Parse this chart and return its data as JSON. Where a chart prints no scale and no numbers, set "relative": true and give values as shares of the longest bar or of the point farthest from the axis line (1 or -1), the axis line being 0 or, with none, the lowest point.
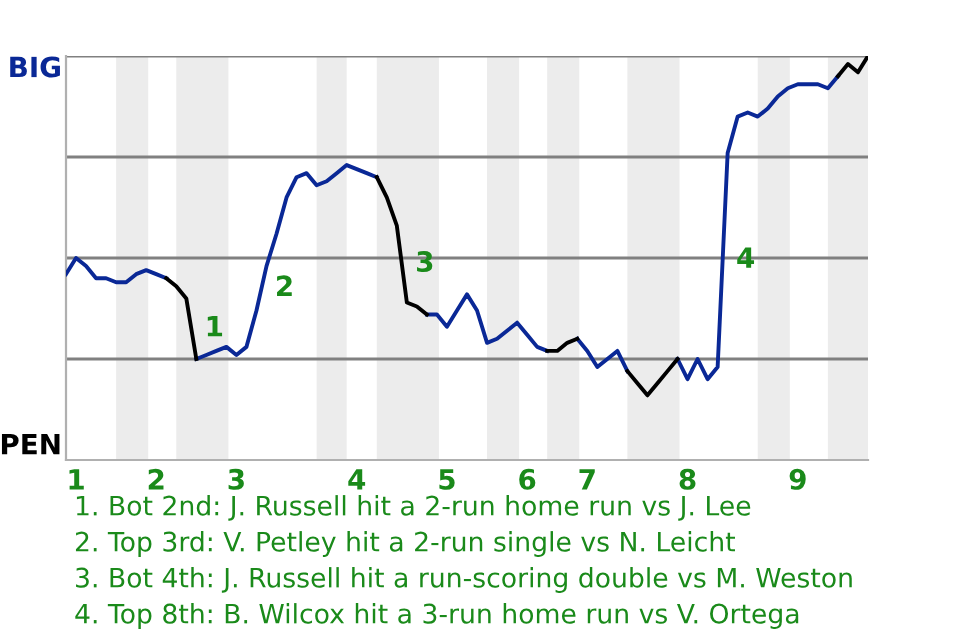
{
  "chart_data": {
    "type": "line",
    "relative": true,
    "categories": [
      null,
      "1",
      null,
      null,
      null,
      null,
      null,
      null,
      null,
      "2",
      null,
      null,
      null,
      null,
      null,
      null,
      null,
      "3",
      null,
      null,
      null,
      null,
      null,
      null,
      null,
      null,
      null,
      null,
      null,
      "4",
      null,
      null,
      null,
      null,
      null,
      null,
      null,
      null,
      "5",
      null,
      null,
      null,
      null,
      null,
      null,
      null,
      "6",
      null,
      null,
      null,
      null,
      null,
      "7",
      null,
      null,
      null,
      null,
      null,
      null,
      null,
      null,
      null,
      "8",
      null,
      null,
      null,
      null,
      null,
      null,
      null,
      null,
      null,
      null,
      "9",
      null,
      null,
      null,
      null,
      null,
      null,
      null
    ],
    "series": [
      {
        "color": "#0a2896",
        "values": [
          0.46,
          0.5,
          0.48,
          0.45,
          0.45,
          0.44,
          0.44,
          0.46,
          0.47,
          0.46,
          0.45,
          null,
          null,
          0.25,
          0.26,
          0.27,
          0.28,
          0.26,
          0.28,
          0.37,
          0.48,
          0.56,
          0.65,
          0.7,
          0.71,
          0.68,
          0.69,
          0.71,
          0.73,
          0.72,
          0.71,
          0.7,
          null,
          null,
          null,
          null,
          0.36,
          0.36,
          0.33,
          0.37,
          0.41,
          0.37,
          0.29,
          0.3,
          0.32,
          0.34,
          0.31,
          0.28,
          0.27,
          null,
          null,
          0.3,
          0.27,
          0.23,
          0.25,
          0.27,
          0.22,
          null,
          null,
          null,
          null,
          0.25,
          0.2,
          0.25,
          0.2,
          0.23,
          0.76,
          0.85,
          0.86,
          0.85,
          0.87,
          0.9,
          0.92,
          0.93,
          0.93,
          0.93,
          0.92,
          0.95,
          null,
          null,
          null
        ],
        "name": null
      },
      {
        "color": "#000000",
        "values": [
          null,
          null,
          null,
          null,
          null,
          null,
          null,
          null,
          null,
          null,
          0.45,
          0.43,
          0.4,
          0.25,
          null,
          null,
          null,
          null,
          null,
          null,
          null,
          null,
          null,
          null,
          null,
          null,
          null,
          null,
          null,
          null,
          null,
          0.7,
          0.65,
          0.58,
          0.39,
          0.38,
          0.36,
          null,
          null,
          null,
          null,
          null,
          null,
          null,
          null,
          null,
          null,
          null,
          0.27,
          0.27,
          0.29,
          0.3,
          null,
          null,
          null,
          null,
          0.22,
          0.19,
          0.16,
          0.19,
          0.22,
          0.25,
          null,
          null,
          null,
          null,
          null,
          null,
          null,
          null,
          null,
          null,
          null,
          null,
          null,
          null,
          null,
          0.95,
          0.98,
          0.96,
          1.0
        ]
      }
    ],
    "ref_lines": [
      {
        "axis": "y",
        "value": 0.25,
        "color": "#808080"
      },
      {
        "axis": "y",
        "value": 0.5,
        "color": "#808080"
      },
      {
        "axis": "y",
        "value": 0.75,
        "color": "#808080"
      },
      {
        "axis": "y",
        "value": 1,
        "color": "#808080"
      }
    ],
    "annotations": [
      "BIG",
      "PEN",
      "1",
      "2",
      "3",
      "4",
      "1. Bot 2nd: J. Russell hit a 2-run home run vs J. Lee",
      "2. Top 3rd: V. Petley hit a 2-run single vs N. Leicht",
      "3. Bot 4th: J. Russell hit a run-scoring double vs M. Weston",
      "4. Top 8th: B. Wilcox hit a 3-run home run vs V. Ortega"
    ]
  }
}
